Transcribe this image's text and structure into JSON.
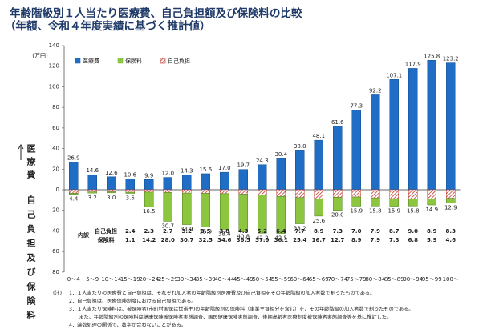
{
  "chart_data": {
    "type": "bar",
    "title": "年齢階級別１人当たり医療費、自己負担額及び保険料の比較",
    "subtitle": "（年額、令和４年度実績に基づく推計値）",
    "y_unit": "(万円)",
    "y_label": "医療費",
    "y2_label": "自己負担及び保険料",
    "breakdown_label": "内訳",
    "categories": [
      "0～4",
      "5～9",
      "10～14",
      "15～19",
      "20～24",
      "25～29",
      "30～34",
      "35～39",
      "40～44",
      "45～49",
      "50～54",
      "55～59",
      "60～64",
      "65～69",
      "70～74",
      "75～79",
      "80～84",
      "85～89",
      "90～94",
      "95～99",
      "100～"
    ],
    "series": [
      {
        "name": "医療費",
        "color": "#1f6dc4",
        "values": [
          26.9,
          14.6,
          12.6,
          10.6,
          9.9,
          12.0,
          14.3,
          15.6,
          17.0,
          19.7,
          24.3,
          30.4,
          38.0,
          48.1,
          61.6,
          77.3,
          92.2,
          107.1,
          117.9,
          125.8,
          123.2
        ],
        "value_labels": [
          "26.9",
          "14.6",
          "12.6",
          "10.6",
          "9.9",
          "12.0",
          "14.3",
          "15.6",
          "17.0",
          "19.7",
          "24.3",
          "30.4",
          "38.0",
          "48.1",
          "61.6",
          "77.3",
          "92.2",
          "107.1",
          "117.9",
          "125.8",
          "123.2"
        ]
      },
      {
        "name": "保険料",
        "color": "#8cc63f",
        "axis": "y2",
        "values": [
          1.0,
          1.1,
          1.0,
          1.1,
          14.2,
          28.0,
          30.7,
          32.5,
          34.6,
          36.5,
          37.0,
          36.1,
          25.4,
          16.7,
          12.7,
          8.9,
          7.9,
          7.3,
          6.8,
          5.9,
          4.6
        ],
        "value_labels": [
          null,
          null,
          null,
          "1.1",
          "14.2",
          "28.0",
          "30.7",
          "32.5",
          "34.6",
          "36.5",
          "37.0",
          "36.1",
          "25.4",
          "16.7",
          "12.7",
          "8.9",
          "7.9",
          "7.3",
          "6.8",
          "5.9",
          "4.6"
        ]
      },
      {
        "name": "自己負担",
        "color": "#c0392b",
        "pattern": "hatch",
        "axis": "y2",
        "values": [
          3.4,
          2.1,
          2.0,
          2.4,
          2.3,
          2.7,
          3.2,
          3.5,
          3.8,
          4.3,
          5.2,
          6.4,
          7.7,
          8.9,
          7.3,
          7.0,
          7.9,
          8.7,
          9.0,
          8.9,
          8.3
        ],
        "value_labels": [
          null,
          null,
          null,
          "2.4",
          "2.3",
          "2.7",
          "3.2",
          "3.5",
          "3.8",
          "4.3",
          "5.2",
          "6.4",
          "7.7",
          "8.9",
          "7.3",
          "7.0",
          "7.9",
          "8.7",
          "9.0",
          "8.9",
          "8.3"
        ]
      }
    ],
    "totals": {
      "values": [
        4.4,
        3.2,
        3.0,
        3.5,
        16.5,
        30.7,
        33.9,
        35.9,
        38.4,
        40.8,
        42.2,
        42.5,
        33.2,
        25.6,
        20.0,
        15.9,
        15.8,
        15.9,
        15.8,
        14.9,
        12.9
      ],
      "value_labels": [
        "4.4",
        "3.2",
        "3.0",
        "3.5",
        "16.5",
        "30.7",
        "33.9",
        "35.9",
        "38.4",
        "40.8",
        "42.2",
        "42.5",
        "33.2",
        "25.6",
        "20.0",
        "15.9",
        "15.8",
        "15.9",
        "15.8",
        "14.9",
        "12.9"
      ]
    },
    "ylim": [
      0,
      140
    ],
    "yticks": [
      0,
      20,
      40,
      60,
      80,
      100,
      120,
      140
    ],
    "y2lim": [
      0,
      80
    ],
    "y2ticks": [
      20,
      40,
      60,
      80
    ],
    "notes": {
      "label": "(注)",
      "items": [
        "1．１人当たりの医療費と自己負担は、それぞれ加入者の年齢階級別医療費及び自己負担をその年齢階級の加入者数で割ったものである。",
        "2．自己負担は、医療保険制度における自己負担である。",
        "3．１人当たり保険料は、被保険者(市町村国保は世帯主)の年齢階級別の保険料（事業主負担分を含む）を、その年齢階級の加入者数で割ったものである。",
        "　　また、年齢階級別の保険料は健康保険被保険者実態調査、国民健康保険実態調査、後期高齢者医療制度被保険者実態調査等を基に推計した。",
        "4．端数処理の関係で、数字が合わないことがある。"
      ]
    }
  }
}
